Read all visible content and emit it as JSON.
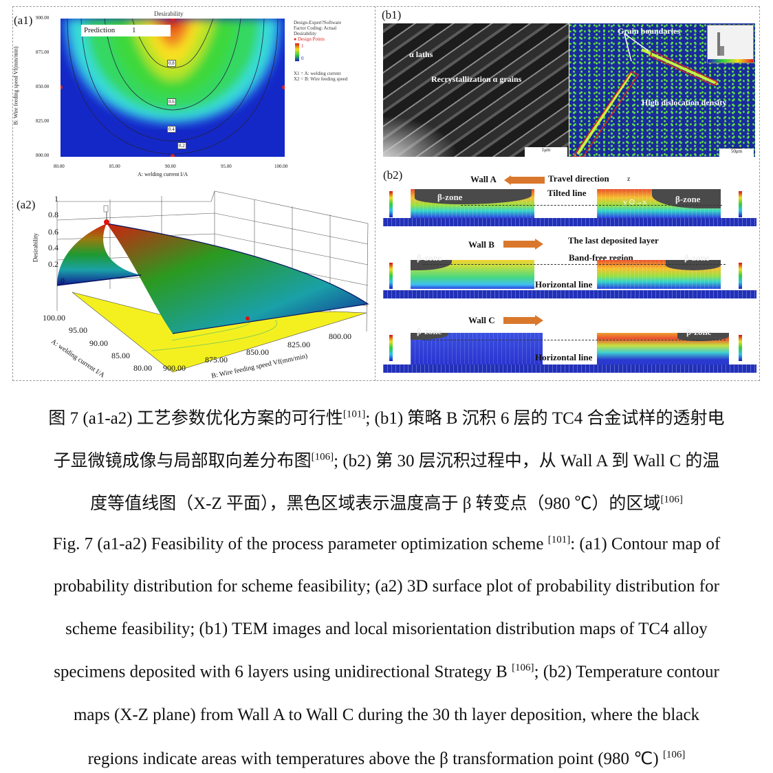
{
  "figure": {
    "a1": {
      "label": "(a1)",
      "title": "Desirability",
      "prediction_label": "Prediction",
      "prediction_value": "1",
      "xlabel": "A: welding current I/A",
      "ylabel": "B: Wire feeding speed Vf(mm/min)",
      "xticks": [
        "80.00",
        "85.00",
        "90.00",
        "95.00",
        "100.00"
      ],
      "yticks": [
        "900.00",
        "875.00",
        "850.00",
        "825.00",
        "800.00"
      ],
      "contour_labels": [
        "0.8",
        "0.6",
        "0.4",
        "0.2"
      ],
      "legend": {
        "software": "Design-Expert?Software",
        "coding": "Factor Coding: Actual",
        "response": "Desirability",
        "points": "Design Points",
        "max": "1",
        "min": "0",
        "x1": "X1 = A: welding current",
        "x2": "X2 = B: Wire feeding speed"
      },
      "colors": {
        "high": "#e01a10",
        "mid": "#2fd84a",
        "low": "#1020c0",
        "points": "#e02020"
      }
    },
    "a2": {
      "label": "(a2)",
      "zlabel": "Desirability",
      "zticks": [
        "1",
        "0.8",
        "0.6",
        "0.4",
        "0.2",
        "0"
      ],
      "a_ticks": [
        "100.00",
        "95.00",
        "90.00",
        "85.00",
        "80.00"
      ],
      "a_label": "A: welding current I/A",
      "b_ticks": [
        "900.00",
        "875.00",
        "850.00",
        "825.00",
        "800.00"
      ],
      "b_label": "B: Wire feeding speed Vf(mm/min)",
      "peak_label": "1"
    },
    "b1": {
      "label": "(b1)",
      "alpha_laths": "α  laths",
      "recrystallization": "Recrystallization α grains",
      "scale_left": "1μm",
      "grain_boundaries": "Grain boundaries",
      "dislocation": "High dislocation density",
      "scale_right": "50μm"
    },
    "b2": {
      "label": "(b2)",
      "wall_a": "Wall A",
      "wall_b": "Wall B",
      "wall_c": "Wall C",
      "travel_direction": "Travel direction",
      "tilted_line": "Tilted line",
      "axis_z": "z",
      "axis_y": "y",
      "axis_x": "x",
      "beta_zone": "β-zone",
      "last_layer": "The last deposited layer",
      "band_free": "Band-free region",
      "horizontal_line": "Horizontal line"
    }
  },
  "caption": {
    "zh_line1": "图 7 (a1-a2)  工艺参数优化方案的可行性",
    "zh_ref1": "[101]",
    "zh_line1b": "; (b1)  策略 B 沉积 6 层的 TC4 合金试样的透射电",
    "zh_line2": "子显微镜成像与局部取向差分布图",
    "zh_ref2": "[106]",
    "zh_line2b": "; (b2)  第 30 层沉积过程中，从 Wall A 到 Wall C 的温",
    "zh_line3": "度等值线图（X-Z 平面），黑色区域表示温度高于 β 转变点（980 ℃）的区域",
    "zh_ref3": "[106]",
    "en_line1": "Fig. 7 (a1-a2) Feasibility of the process parameter optimization scheme ",
    "en_ref1": "[101]",
    "en_line1b": ": (a1) Contour map of",
    "en_line2": "probability distribution for scheme feasibility; (a2) 3D surface plot of probability distribution for",
    "en_line3": "scheme feasibility; (b1) TEM images and local misorientation distribution maps of TC4 alloy",
    "en_line4": "specimens deposited with 6 layers using unidirectional Strategy B ",
    "en_ref4": "[106]",
    "en_line4b": "; (b2) Temperature contour",
    "en_line5": "maps (X-Z plane) from Wall A to Wall C during the 30 th layer deposition, where the black",
    "en_line6": "regions indicate areas with temperatures above the β transformation point (980 ℃) ",
    "en_ref6": "[106]"
  }
}
